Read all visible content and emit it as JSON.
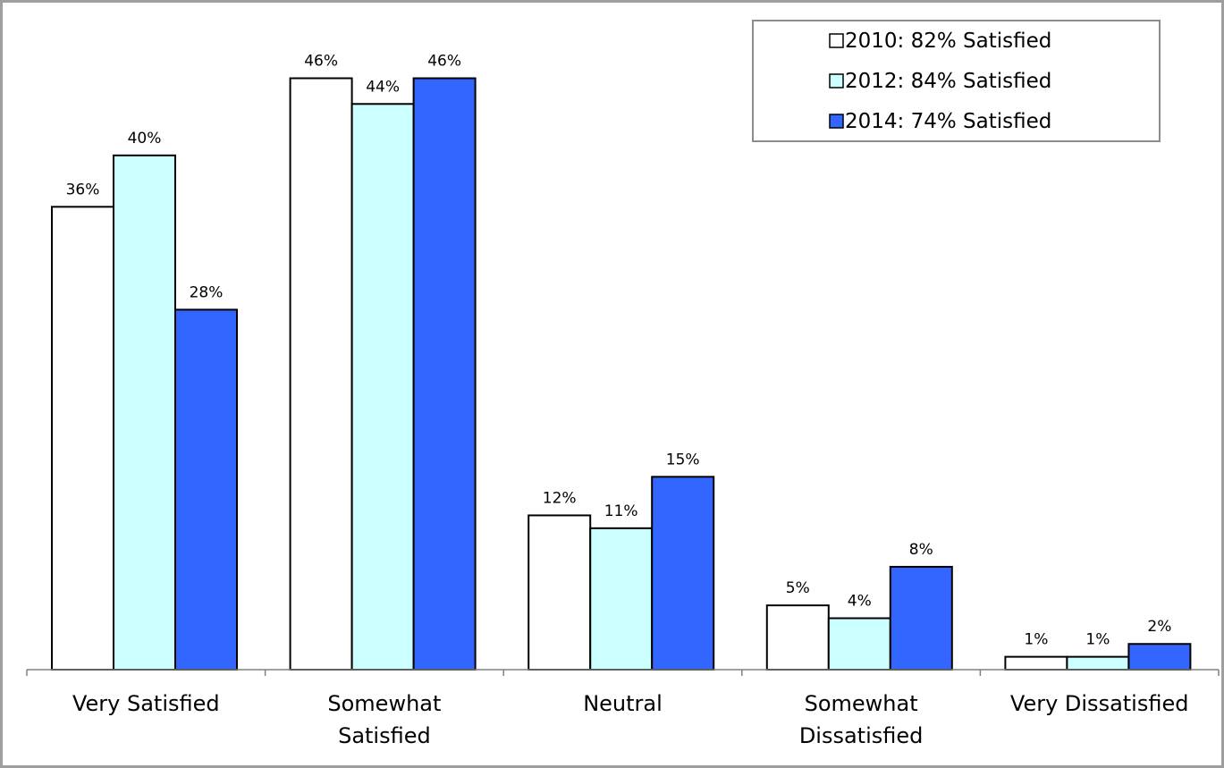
{
  "chart_data": {
    "type": "bar",
    "categories": [
      [
        "Very Satisfied"
      ],
      [
        "Somewhat",
        "Satisfied"
      ],
      [
        "Neutral"
      ],
      [
        "Somewhat",
        "Dissatisfied"
      ],
      [
        "Very Dissatisfied"
      ]
    ],
    "series": [
      {
        "name": "2010: 82% Satisfied",
        "values": [
          36,
          46,
          12,
          5,
          1
        ],
        "labels": [
          "36%",
          "46%",
          "12%",
          "5%",
          "1%"
        ],
        "color": "#ffffff"
      },
      {
        "name": "2012: 84% Satisfied",
        "values": [
          40,
          44,
          11,
          4,
          1
        ],
        "labels": [
          "40%",
          "44%",
          "11%",
          "4%",
          "1%"
        ],
        "color": "#ccffff"
      },
      {
        "name": "2014: 74% Satisfied",
        "values": [
          28,
          46,
          15,
          8,
          2
        ],
        "labels": [
          "28%",
          "46%",
          "15%",
          "8%",
          "2%"
        ],
        "color": "#3366ff"
      }
    ],
    "ylim": [
      0,
      50
    ],
    "grid": false,
    "legend_position": "top-right",
    "title": "",
    "xlabel": "",
    "ylabel": ""
  }
}
